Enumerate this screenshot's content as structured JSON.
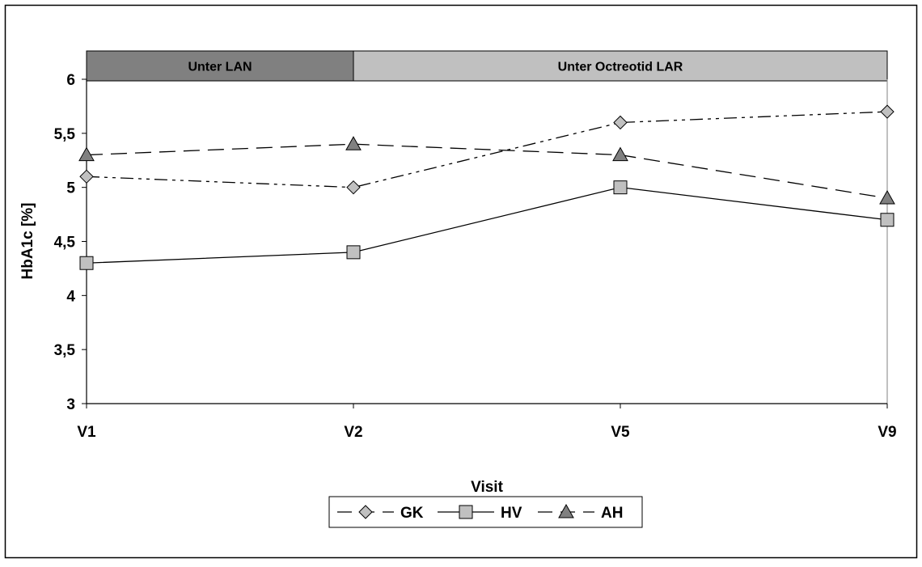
{
  "chart_data": {
    "type": "line",
    "title": "",
    "xlabel": "Visit",
    "ylabel": "HbA1c [%]",
    "categories": [
      "V1",
      "V2",
      "V5",
      "V9"
    ],
    "ylim": [
      3,
      6
    ],
    "yticks": [
      "3",
      "3,5",
      "4",
      "4,5",
      "5",
      "5,5",
      "6"
    ],
    "ytick_values": [
      3,
      3.5,
      4,
      4.5,
      5,
      5.5,
      6
    ],
    "grid": false,
    "legend_position": "bottom",
    "phases": [
      {
        "label": "Unter LAN",
        "start": 0,
        "end": 1,
        "color": "#808080"
      },
      {
        "label": "Unter Octreotid LAR",
        "start": 1,
        "end": 3,
        "color": "#c0c0c0"
      }
    ],
    "series": [
      {
        "name": "GK",
        "values": [
          5.1,
          5.0,
          5.6,
          5.7
        ],
        "marker": "diamond",
        "line_style": "dash-dot-dot",
        "marker_color": "#c0c0c0"
      },
      {
        "name": "HV",
        "values": [
          4.3,
          4.4,
          5.0,
          4.7
        ],
        "marker": "square",
        "line_style": "solid",
        "marker_color": "#c0c0c0"
      },
      {
        "name": "AH",
        "values": [
          5.3,
          5.4,
          5.3,
          4.9
        ],
        "marker": "triangle",
        "line_style": "dashed",
        "marker_color": "#808080"
      }
    ]
  }
}
